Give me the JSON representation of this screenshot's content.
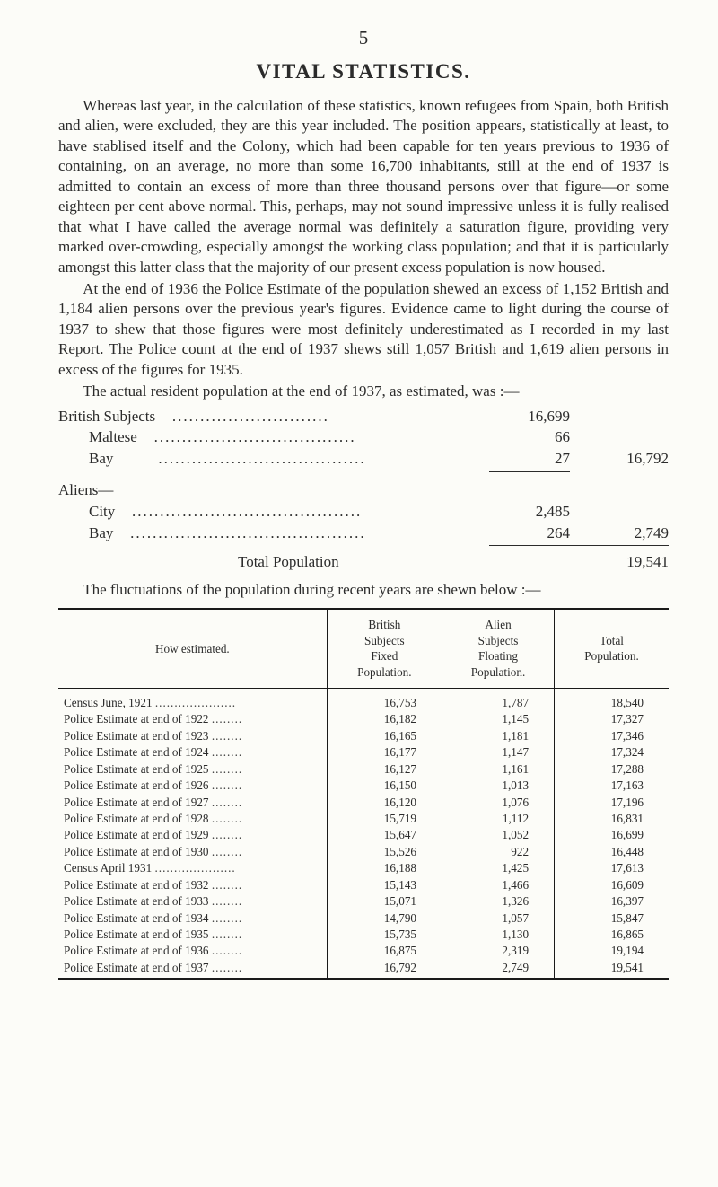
{
  "pageNumber": "5",
  "title": "VITAL STATISTICS.",
  "paragraphs": {
    "p1": "Whereas last year, in the calculation of these statistics, known refugees from Spain, both British and alien, were excluded, they are this year included. The position appears, statistically at least, to have stablised itself and the Colony, which had been capable for ten years previous to 1936 of containing, on an average, no more than some 16,700 inhabitants, still at the end of 1937 is admitted to contain an excess of more than three thousand persons over that figure—or some eighteen per cent above normal. This, perhaps, may not sound impressive unless it is fully realised that what I have called the average normal was definitely a saturation figure, providing very marked over-crowding, especially amongst the working class population; and that it is particularly amongst this latter class that the majority of our present excess population is now housed.",
    "p2": "At the end of 1936 the Police Estimate of the population shewed an excess of 1,152 British and 1,184 alien persons over the previous year's figures. Evidence came to light during the course of 1937 to shew that those figures were most definitely underestimated as I recorded in my last Report. The Police count at the end of 1937 shews still 1,057 British and 1,619 alien persons in excess of the figures for 1935.",
    "p3": "The actual resident population at the end of 1937, as esti­mated, was :—",
    "p4": "The fluctuations of the population during recent years are shewn below :—"
  },
  "statsA": {
    "heading": "British Subjects",
    "headingVal": "16,699",
    "rows": [
      {
        "label": "Maltese",
        "val": "66",
        "indent": "        "
      },
      {
        "label": "Bay",
        "val": "27",
        "indent": "        "
      }
    ],
    "total": "16,792"
  },
  "statsB": {
    "heading": "Aliens—",
    "rows": [
      {
        "label": "City",
        "val": "2,485",
        "indent": "        "
      },
      {
        "label": "Bay",
        "val": "264",
        "indent": "        "
      }
    ],
    "total": "2,749"
  },
  "grandTotal": {
    "label": "Total Population",
    "val": "19,541"
  },
  "table": {
    "headers": {
      "h1": "How estimated.",
      "h2": "British\nSubjects\nFixed\nPopulation.",
      "h3": "Alien\nSubjects\nFloating\nPopulation.",
      "h4": "Total\nPopulation."
    },
    "rows": [
      {
        "label": "Census June, 1921",
        "c1": "16,753",
        "c2": "1,787",
        "c3": "18,540"
      },
      {
        "label": "Police Estimate at end of 1922",
        "c1": "16,182",
        "c2": "1,145",
        "c3": "17,327"
      },
      {
        "label": "Police Estimate at end of 1923",
        "c1": "16,165",
        "c2": "1,181",
        "c3": "17,346"
      },
      {
        "label": "Police Estimate at end of 1924",
        "c1": "16,177",
        "c2": "1,147",
        "c3": "17,324"
      },
      {
        "label": "Police Estimate at end of 1925",
        "c1": "16,127",
        "c2": "1,161",
        "c3": "17,288"
      },
      {
        "label": "Police Estimate at end of 1926",
        "c1": "16,150",
        "c2": "1,013",
        "c3": "17,163"
      },
      {
        "label": "Police Estimate at end of 1927",
        "c1": "16,120",
        "c2": "1,076",
        "c3": "17,196"
      },
      {
        "label": "Police Estimate at end of 1928",
        "c1": "15,719",
        "c2": "1,112",
        "c3": "16,831"
      },
      {
        "label": "Police Estimate at end of 1929",
        "c1": "15,647",
        "c2": "1,052",
        "c3": "16,699"
      },
      {
        "label": "Police Estimate at end of 1930",
        "c1": "15,526",
        "c2": "922",
        "c3": "16,448"
      },
      {
        "label": "Census April 1931",
        "c1": "16,188",
        "c2": "1,425",
        "c3": "17,613"
      },
      {
        "label": "Police Estimate at end of 1932",
        "c1": "15,143",
        "c2": "1,466",
        "c3": "16,609"
      },
      {
        "label": "Police Estimate at end of 1933",
        "c1": "15,071",
        "c2": "1,326",
        "c3": "16,397"
      },
      {
        "label": "Police Estimate at end of 1934",
        "c1": "14,790",
        "c2": "1,057",
        "c3": "15,847"
      },
      {
        "label": "Police Estimate at end of 1935",
        "c1": "15,735",
        "c2": "1,130",
        "c3": "16,865"
      },
      {
        "label": "Police Estimate at end of 1936",
        "c1": "16,875",
        "c2": "2,319",
        "c3": "19,194"
      },
      {
        "label": "Police Estimate at end of 1937",
        "c1": "16,792",
        "c2": "2,749",
        "c3": "19,541"
      }
    ]
  },
  "style": {
    "pageBg": "#fcfcf8",
    "textColor": "#2b2b2b",
    "borderColor": "#1a1a1a"
  }
}
